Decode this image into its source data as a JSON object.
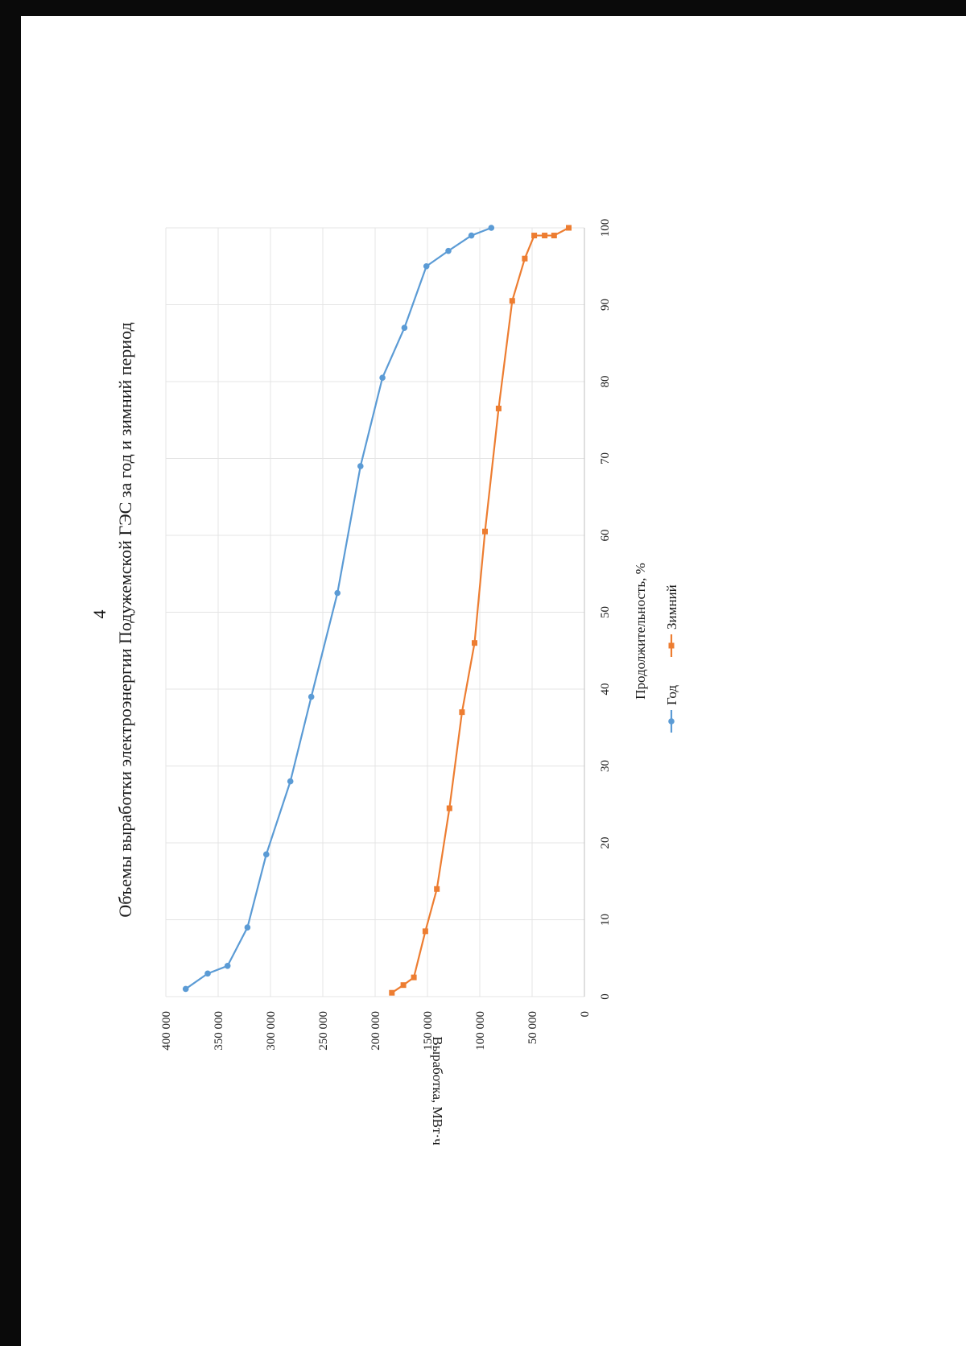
{
  "page": {
    "number": "4"
  },
  "chart_data": {
    "type": "line",
    "title": "Объемы выработки электроэнергии Подужемской ГЭС за год и зимний период",
    "xlabel": "Продолжительность, %",
    "ylabel": "Выработка, МВт·ч",
    "xlim": [
      0,
      100
    ],
    "ylim": [
      0,
      400000
    ],
    "xticks": [
      "0",
      "10",
      "20",
      "30",
      "40",
      "50",
      "60",
      "70",
      "80",
      "90",
      "100"
    ],
    "yticks": [
      "0",
      "50 000",
      "100 000",
      "150 000",
      "200 000",
      "250 000",
      "300 000",
      "350 000",
      "400 000"
    ],
    "grid": true,
    "legend": "bottom",
    "orientation": "rotated 90° counter-clockwise on the page",
    "series": [
      {
        "name": "Год",
        "color": "#5b9bd5",
        "marker": "circle",
        "points": [
          [
            1,
            381000
          ],
          [
            3,
            360000
          ],
          [
            4,
            341000
          ],
          [
            9,
            322000
          ],
          [
            18.5,
            304000
          ],
          [
            28,
            281000
          ],
          [
            39,
            261000
          ],
          [
            52.5,
            236000
          ],
          [
            69,
            214000
          ],
          [
            80.5,
            193000
          ],
          [
            87,
            172000
          ],
          [
            95,
            151000
          ],
          [
            97,
            130000
          ],
          [
            99,
            108000
          ],
          [
            100,
            89000
          ]
        ]
      },
      {
        "name": "Зимний",
        "color": "#ed7d31",
        "marker": "square",
        "points": [
          [
            0.5,
            184000
          ],
          [
            1.5,
            173000
          ],
          [
            2.5,
            163000
          ],
          [
            8.5,
            152000
          ],
          [
            14,
            141000
          ],
          [
            24.5,
            129000
          ],
          [
            37,
            117000
          ],
          [
            46,
            105000
          ],
          [
            60.5,
            95000
          ],
          [
            76.5,
            82000
          ],
          [
            90.5,
            69000
          ],
          [
            96,
            57000
          ],
          [
            99,
            48000
          ],
          [
            99,
            38000
          ],
          [
            99,
            29000
          ],
          [
            100,
            15000
          ]
        ]
      }
    ]
  }
}
